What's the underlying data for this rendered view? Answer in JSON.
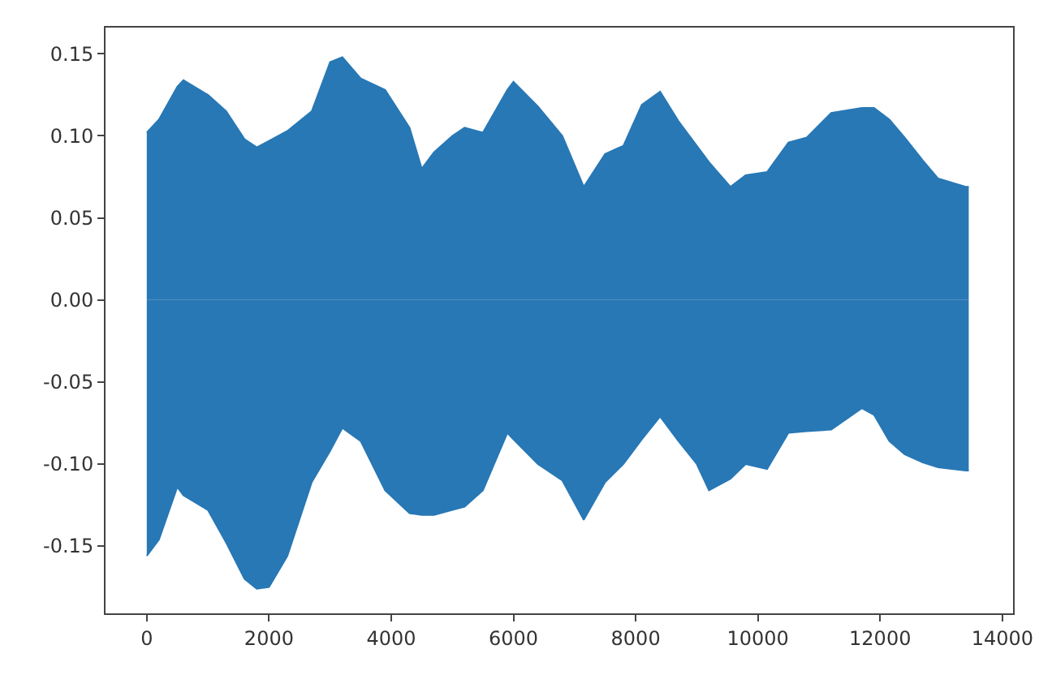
{
  "chart_data": {
    "type": "area",
    "x": [
      0,
      200,
      500,
      600,
      1000,
      1300,
      1600,
      1800,
      2000,
      2300,
      2700,
      3000,
      3200,
      3500,
      3900,
      4300,
      4500,
      4700,
      5000,
      5200,
      5500,
      5900,
      6000,
      6400,
      6800,
      7150,
      7500,
      7800,
      8100,
      8400,
      8700,
      9000,
      9200,
      9550,
      9800,
      10150,
      10500,
      10800,
      11200,
      11700,
      11900,
      12150,
      12400,
      12700,
      12950,
      13400,
      13450
    ],
    "series": [
      {
        "color": "#2878b5",
        "values": [
          0.102,
          0.11,
          0.13,
          0.134,
          0.125,
          0.115,
          0.098,
          0.093,
          0.097,
          0.103,
          0.115,
          0.145,
          0.148,
          0.135,
          0.128,
          0.105,
          0.08,
          0.09,
          0.1,
          0.105,
          0.102,
          0.128,
          0.133,
          0.118,
          0.1,
          0.069,
          0.089,
          0.094,
          0.119,
          0.127,
          0.109,
          0.094,
          0.084,
          0.069,
          0.076,
          0.078,
          0.096,
          0.099,
          0.114,
          0.117,
          0.117,
          0.11,
          0.099,
          0.085,
          0.074,
          0.069,
          0.069
        ]
      },
      {
        "color": "#2878b5",
        "values": [
          -0.156,
          -0.146,
          -0.114,
          -0.119,
          -0.128,
          -0.148,
          -0.17,
          -0.176,
          -0.175,
          -0.156,
          -0.111,
          -0.092,
          -0.078,
          -0.086,
          -0.116,
          -0.13,
          -0.131,
          -0.131,
          -0.128,
          -0.126,
          -0.116,
          -0.081,
          -0.085,
          -0.1,
          -0.11,
          -0.134,
          -0.111,
          -0.1,
          -0.085,
          -0.071,
          -0.086,
          -0.1,
          -0.116,
          -0.109,
          -0.1,
          -0.103,
          -0.081,
          -0.08,
          -0.079,
          -0.066,
          -0.07,
          -0.086,
          -0.094,
          -0.099,
          -0.102,
          -0.104,
          -0.104
        ]
      }
    ],
    "xlim": [
      -675,
      14175
    ],
    "xticks": [
      0,
      2000,
      4000,
      6000,
      8000,
      10000,
      12000,
      14000
    ],
    "ylim": [
      -0.191,
      0.166
    ],
    "yticks": [
      -0.15,
      {
        "value": -0.1,
        "label": "-0.10"
      },
      -0.05,
      {
        "value": 0,
        "label": "0.00"
      },
      0.05,
      {
        "value": 0.1,
        "label": "0.10"
      },
      0.15
    ],
    "line_style": "solid"
  }
}
